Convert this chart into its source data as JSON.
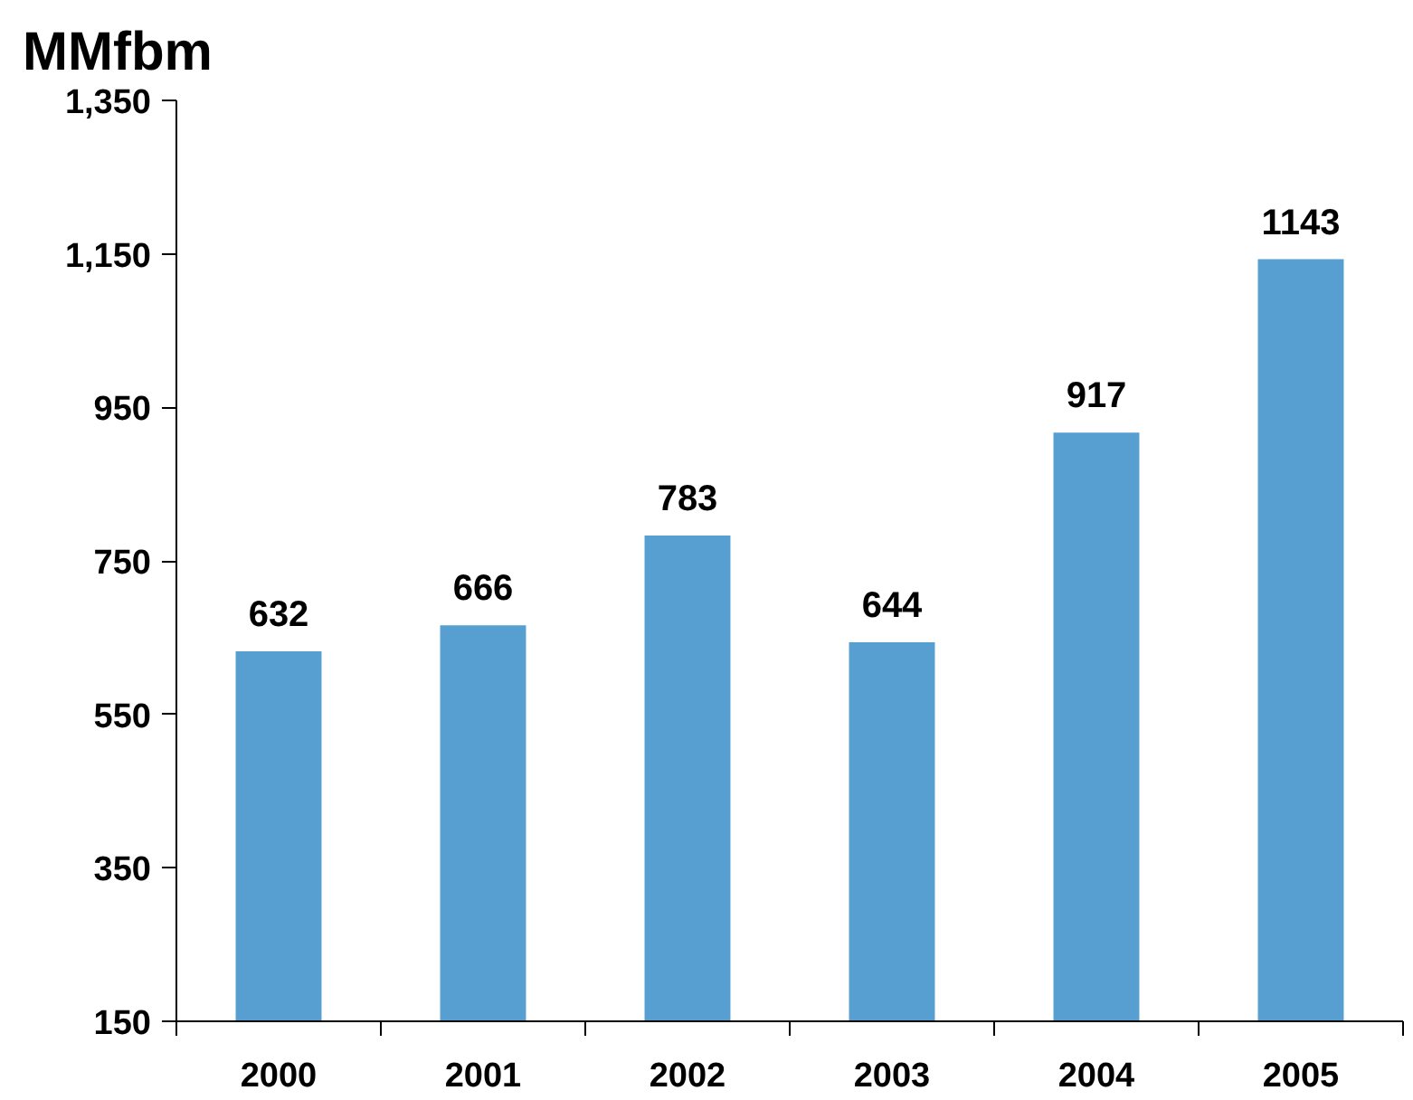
{
  "chart_data": {
    "type": "bar",
    "title": "MMfbm",
    "categories": [
      "2000",
      "2001",
      "2002",
      "2003",
      "2004",
      "2005"
    ],
    "values": [
      632,
      666,
      783,
      644,
      917,
      1143
    ],
    "color": "#569fd0",
    "ylim": [
      150,
      1350
    ],
    "yticks": [
      150,
      350,
      550,
      750,
      950,
      {
        "value": 1150,
        "label": "1,150"
      },
      {
        "value": 1350,
        "label": "1,350"
      }
    ],
    "grid": false,
    "data_labels": true
  }
}
